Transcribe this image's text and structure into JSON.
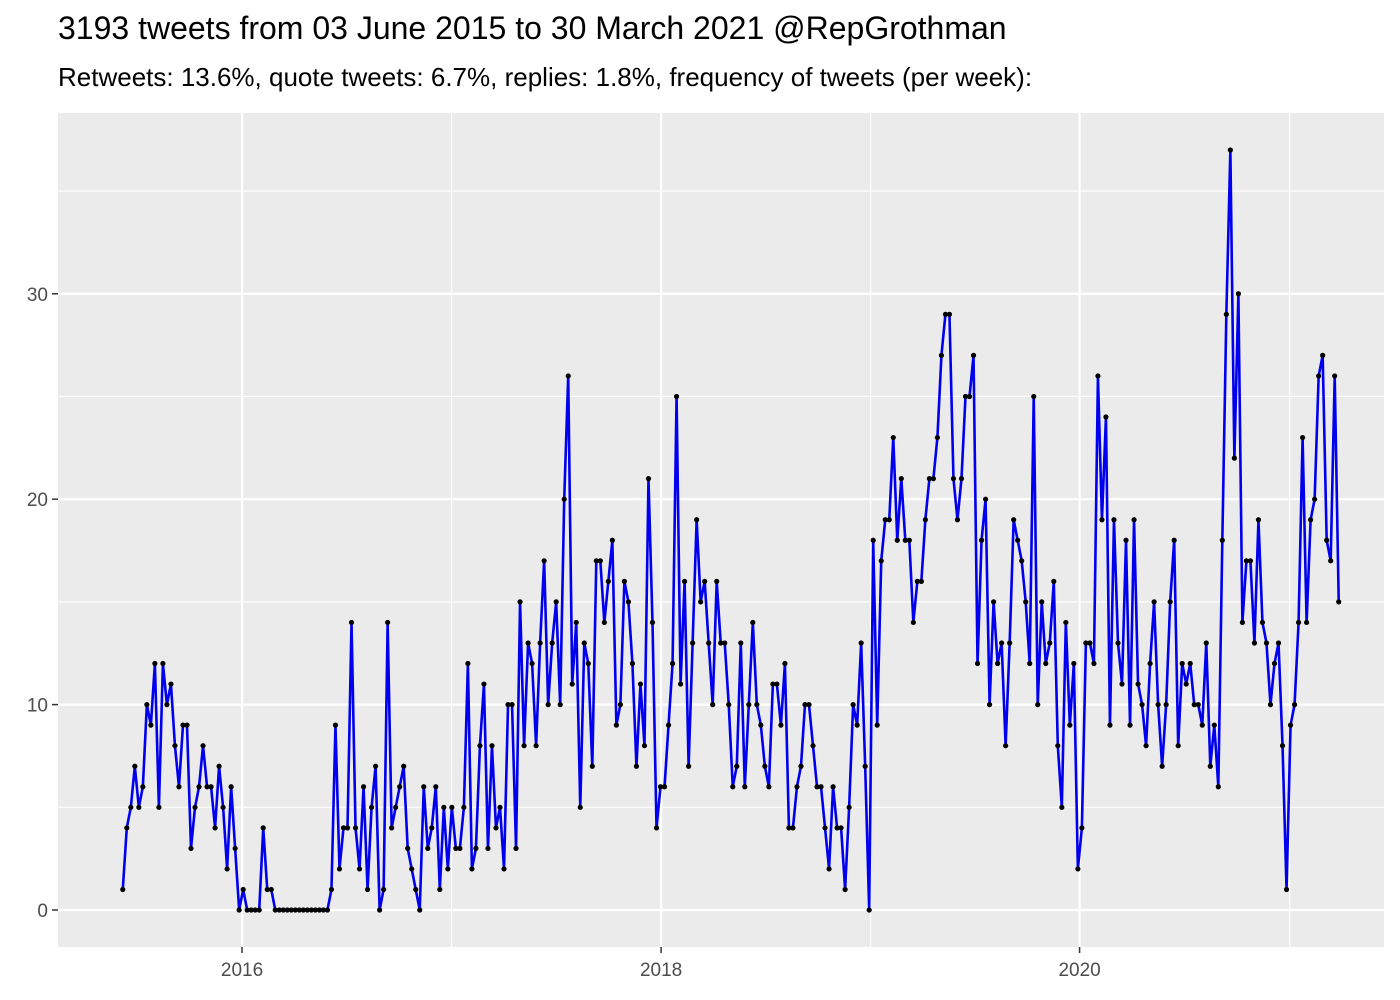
{
  "chart_data": {
    "type": "line",
    "title": "3193 tweets from 03 June 2015 to 30 March 2021 @RepGrothman",
    "subtitle": "Retweets: 13.6%, quote tweets: 6.7%, replies: 1.8%, frequency of tweets (per week):",
    "xlabel": "",
    "ylabel": "",
    "x_start": "2015-06-07",
    "x_step_days": 7,
    "xlim": [
      "2015-02-14",
      "2021-06-15"
    ],
    "ylim": [
      -1.8,
      38.8
    ],
    "x_ticks": [
      {
        "date": "2016-01-01",
        "label": "2016"
      },
      {
        "date": "2018-01-01",
        "label": "2018"
      },
      {
        "date": "2020-01-01",
        "label": "2020"
      }
    ],
    "y_ticks": [
      0,
      10,
      20,
      30
    ],
    "grid": true,
    "colors": {
      "line": "#0000ee",
      "points": "#000000",
      "panel": "#ebebeb",
      "grid": "#ffffff"
    },
    "series": [
      {
        "values": [
          1,
          4,
          5,
          7,
          5,
          6,
          10,
          9,
          12,
          5,
          12,
          10,
          11,
          8,
          6,
          9,
          9,
          3,
          5,
          6,
          8,
          6,
          6,
          4,
          7,
          5,
          2,
          6,
          3,
          0,
          1,
          0,
          0,
          0,
          0,
          4,
          1,
          1,
          0,
          0,
          0,
          0,
          0,
          0,
          0,
          0,
          0,
          0,
          0,
          0,
          0,
          0,
          1,
          9,
          2,
          4,
          4,
          14,
          4,
          2,
          6,
          1,
          5,
          7,
          0,
          1,
          14,
          4,
          5,
          6,
          7,
          3,
          2,
          1,
          0,
          6,
          3,
          4,
          6,
          1,
          5,
          2,
          5,
          3,
          3,
          5,
          12,
          2,
          3,
          8,
          11,
          3,
          8,
          4,
          5,
          2,
          10,
          10,
          3,
          15,
          8,
          13,
          12,
          8,
          13,
          17,
          10,
          13,
          15,
          10,
          20,
          26,
          11,
          14,
          5,
          13,
          12,
          7,
          17,
          17,
          14,
          16,
          18,
          9,
          10,
          16,
          15,
          12,
          7,
          11,
          8,
          21,
          14,
          4,
          6,
          6,
          9,
          12,
          25,
          11,
          16,
          7,
          13,
          19,
          15,
          16,
          13,
          10,
          16,
          13,
          13,
          10,
          6,
          7,
          13,
          6,
          10,
          14,
          10,
          9,
          7,
          6,
          11,
          11,
          9,
          12,
          4,
          4,
          6,
          7,
          10,
          10,
          8,
          6,
          6,
          4,
          2,
          6,
          4,
          4,
          1,
          5,
          10,
          9,
          13,
          7,
          0,
          18,
          9,
          17,
          19,
          19,
          23,
          18,
          21,
          18,
          18,
          14,
          16,
          16,
          19,
          21,
          21,
          23,
          27,
          29,
          29,
          21,
          19,
          21,
          25,
          25,
          27,
          12,
          18,
          20,
          10,
          15,
          12,
          13,
          8,
          13,
          19,
          18,
          17,
          15,
          12,
          25,
          10,
          15,
          12,
          13,
          16,
          8,
          5,
          14,
          9,
          12,
          2,
          4,
          13,
          13,
          12,
          26,
          19,
          24,
          9,
          19,
          13,
          11,
          18,
          9,
          19,
          11,
          10,
          8,
          12,
          15,
          10,
          7,
          10,
          15,
          18,
          8,
          12,
          11,
          12,
          10,
          10,
          9,
          13,
          7,
          9,
          6,
          18,
          29,
          37,
          22,
          30,
          14,
          17,
          17,
          13,
          19,
          14,
          13,
          10,
          12,
          13,
          8,
          1,
          9,
          10,
          14,
          23,
          14,
          19,
          20,
          26,
          27,
          18,
          17,
          26,
          15
        ]
      }
    ]
  }
}
